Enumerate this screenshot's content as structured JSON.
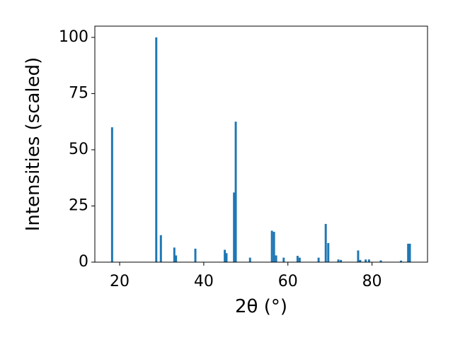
{
  "chart_data": {
    "type": "bar",
    "x_label": "2θ (°)",
    "y_label": "Intensities (scaled)",
    "x": [
      18.2,
      28.7,
      29.8,
      33.0,
      33.4,
      38.0,
      45.0,
      45.4,
      47.2,
      47.6,
      51.0,
      56.2,
      56.7,
      57.2,
      59.0,
      62.3,
      62.8,
      67.3,
      69.0,
      69.6,
      72.0,
      72.6,
      76.7,
      77.2,
      78.5,
      79.3,
      82.1,
      86.9,
      88.6,
      89.0
    ],
    "values": [
      60,
      100,
      12,
      6.5,
      3,
      6,
      5.5,
      4,
      31,
      62.5,
      2,
      14,
      13.5,
      3,
      2,
      2.8,
      2,
      2,
      17,
      8.5,
      1.2,
      1,
      5.2,
      1,
      1.2,
      1.2,
      0.8,
      0.7,
      8.2,
      8.2
    ],
    "color": "#1f77b4",
    "xlim": [
      14.1,
      93.2
    ],
    "xticks": [
      20,
      40,
      60,
      80
    ],
    "ylim": [
      0,
      105
    ],
    "yticks": [
      0,
      25,
      50,
      75,
      100
    ],
    "grid": false
  }
}
